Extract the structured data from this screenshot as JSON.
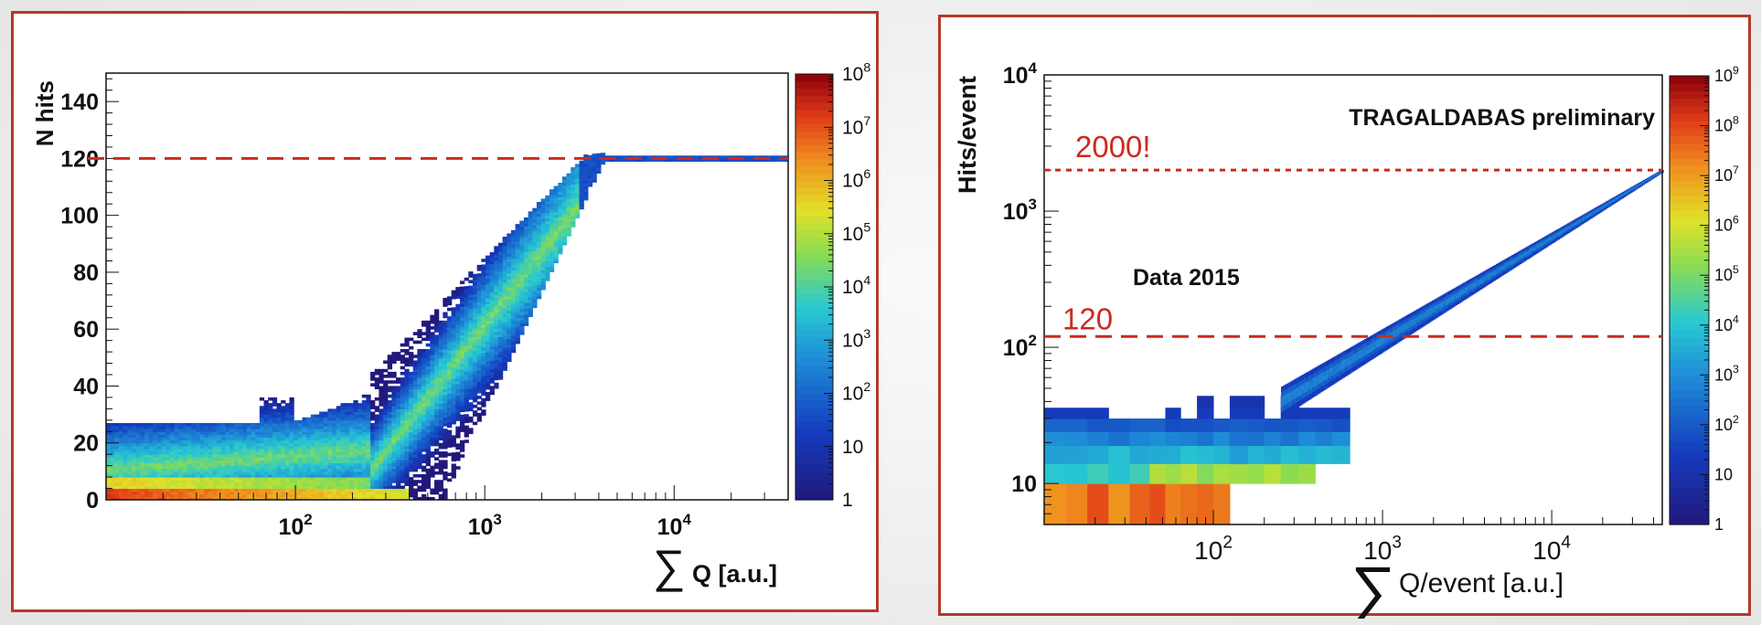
{
  "chart_data": [
    {
      "type": "heatmap",
      "title": "",
      "xlabel": "∑ Q  [a.u.]",
      "ylabel": "N hits",
      "xscale": "log",
      "yscale": "linear",
      "xlim": [
        10,
        40000
      ],
      "ylim": [
        0,
        150
      ],
      "x_tick_labels": [
        {
          "base": "10",
          "exp": "2",
          "value": 100
        },
        {
          "base": "10",
          "exp": "3",
          "value": 1000
        },
        {
          "base": "10",
          "exp": "4",
          "value": 10000
        }
      ],
      "y_ticks": [
        0,
        20,
        40,
        60,
        80,
        100,
        120,
        140
      ],
      "y_tick_labels": [
        "0",
        "20",
        "40",
        "60",
        "80",
        "100",
        "120",
        "140"
      ],
      "colorbar": {
        "scale": "log",
        "min": 1,
        "max": 100000000,
        "labels": [
          {
            "base": "1",
            "exp": "",
            "value": 1
          },
          {
            "base": "10",
            "exp": "",
            "value": 10
          },
          {
            "base": "10",
            "exp": "2",
            "value": 100
          },
          {
            "base": "10",
            "exp": "3",
            "value": 1000
          },
          {
            "base": "10",
            "exp": "4",
            "value": 10000
          },
          {
            "base": "10",
            "exp": "5",
            "value": 100000
          },
          {
            "base": "10",
            "exp": "6",
            "value": 1000000
          },
          {
            "base": "10",
            "exp": "7",
            "value": 10000000
          },
          {
            "base": "10",
            "exp": "8",
            "value": 100000000
          }
        ]
      },
      "reference_lines": [
        {
          "axis": "y",
          "value": 120,
          "style": "dashed",
          "color": "#cc2a1e"
        }
      ],
      "annotations": []
    },
    {
      "type": "heatmap",
      "title": "",
      "xlabel_sum": "∑",
      "xlabel": "Q/event [a.u.]",
      "ylabel": "Hits/event",
      "xscale": "log",
      "yscale": "log",
      "xlim": [
        10,
        45000
      ],
      "ylim": [
        5,
        10000
      ],
      "x_tick_labels": [
        {
          "base": "10",
          "exp": "2",
          "value": 100
        },
        {
          "base": "10",
          "exp": "3",
          "value": 1000
        },
        {
          "base": "10",
          "exp": "4",
          "value": 10000
        }
      ],
      "y_tick_labels": [
        {
          "base": "10",
          "exp": "",
          "value": 10
        },
        {
          "base": "10",
          "exp": "2",
          "value": 100
        },
        {
          "base": "10",
          "exp": "3",
          "value": 1000
        },
        {
          "base": "10",
          "exp": "4",
          "value": 10000
        }
      ],
      "colorbar": {
        "scale": "log",
        "min": 1,
        "max": 1000000000,
        "labels": [
          {
            "base": "1",
            "exp": "",
            "value": 1
          },
          {
            "base": "10",
            "exp": "",
            "value": 10
          },
          {
            "base": "10",
            "exp": "2",
            "value": 100
          },
          {
            "base": "10",
            "exp": "3",
            "value": 1000
          },
          {
            "base": "10",
            "exp": "4",
            "value": 10000
          },
          {
            "base": "10",
            "exp": "5",
            "value": 100000
          },
          {
            "base": "10",
            "exp": "6",
            "value": 1000000
          },
          {
            "base": "10",
            "exp": "7",
            "value": 10000000
          },
          {
            "base": "10",
            "exp": "8",
            "value": 100000000
          },
          {
            "base": "10",
            "exp": "9",
            "value": 1000000000
          }
        ]
      },
      "reference_lines": [
        {
          "axis": "y",
          "value": 2000,
          "style": "dotted",
          "color": "#cc2a1e",
          "label": "2000!"
        },
        {
          "axis": "y",
          "value": 120,
          "style": "dashed",
          "color": "#cc2a1e",
          "label": "120"
        }
      ],
      "annotations": [
        "TRAGALDABAS preliminary",
        "Data 2015"
      ]
    }
  ]
}
